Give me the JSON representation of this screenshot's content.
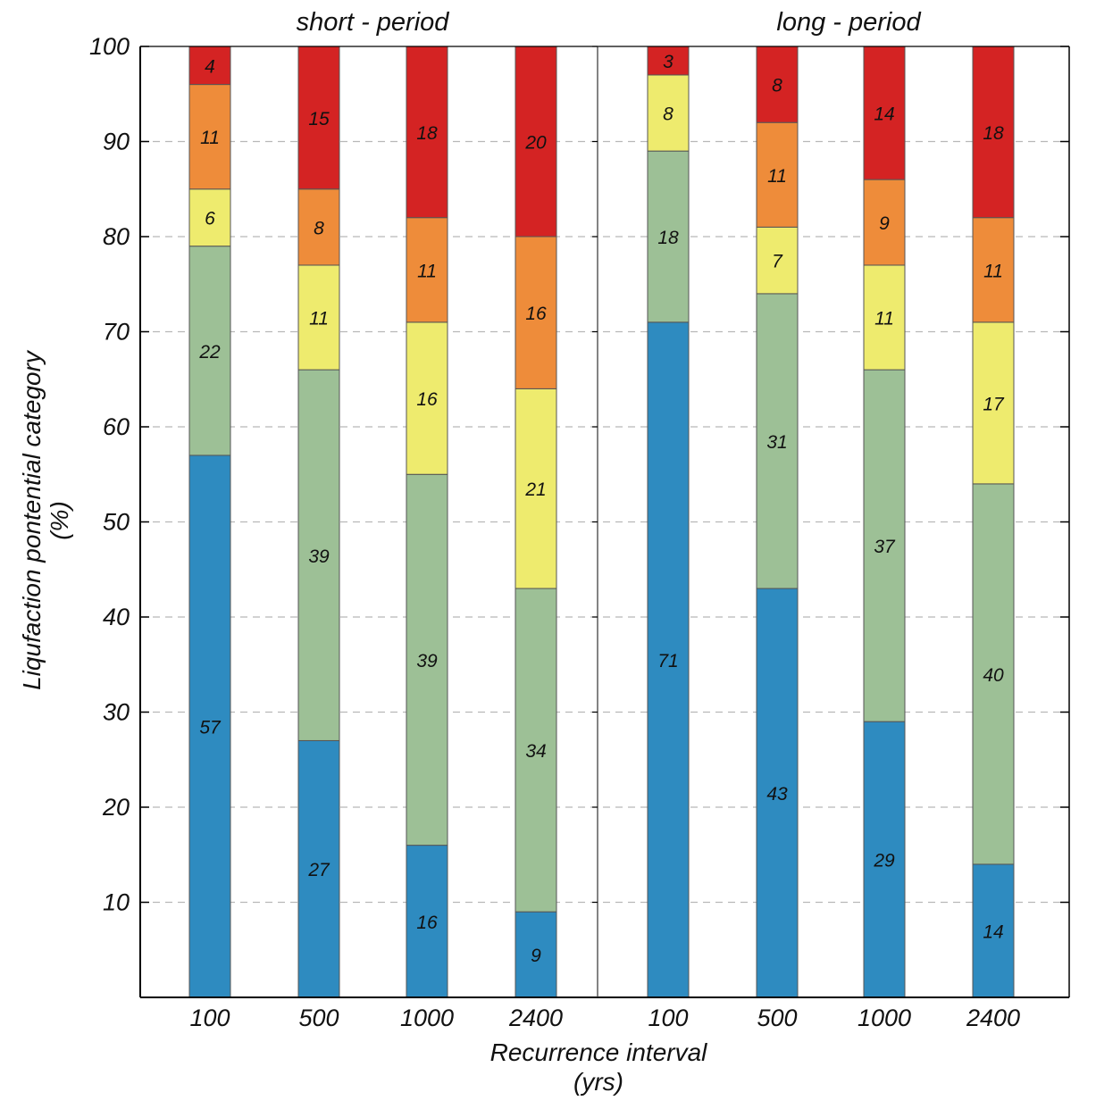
{
  "chart_data": {
    "type": "bar",
    "stacked": true,
    "ylabel": [
      "Liqufaction pontential category",
      "(%)"
    ],
    "xlabel": [
      "Recurrence interval",
      "(yrs)"
    ],
    "ylim": [
      0,
      100
    ],
    "yticks": [
      10,
      20,
      30,
      40,
      50,
      60,
      70,
      80,
      90,
      100
    ],
    "grid": "horizontal dashed",
    "colors": [
      "#2e8bc0",
      "#9dc096",
      "#eeeb6e",
      "#ee8c3a",
      "#d42323"
    ],
    "groups": [
      {
        "title": "short - period",
        "categories": [
          "100",
          "500",
          "1000",
          "2400"
        ],
        "stacks": [
          [
            57,
            22,
            6,
            11,
            4
          ],
          [
            27,
            39,
            11,
            8,
            15
          ],
          [
            16,
            39,
            16,
            11,
            18
          ],
          [
            9,
            34,
            21,
            16,
            20
          ]
        ]
      },
      {
        "title": "long - period",
        "categories": [
          "100",
          "500",
          "1000",
          "2400"
        ],
        "stacks": [
          [
            71,
            18,
            8,
            0,
            3
          ],
          [
            43,
            31,
            7,
            11,
            8
          ],
          [
            29,
            37,
            11,
            9,
            14
          ],
          [
            14,
            40,
            17,
            11,
            18
          ]
        ]
      }
    ]
  }
}
